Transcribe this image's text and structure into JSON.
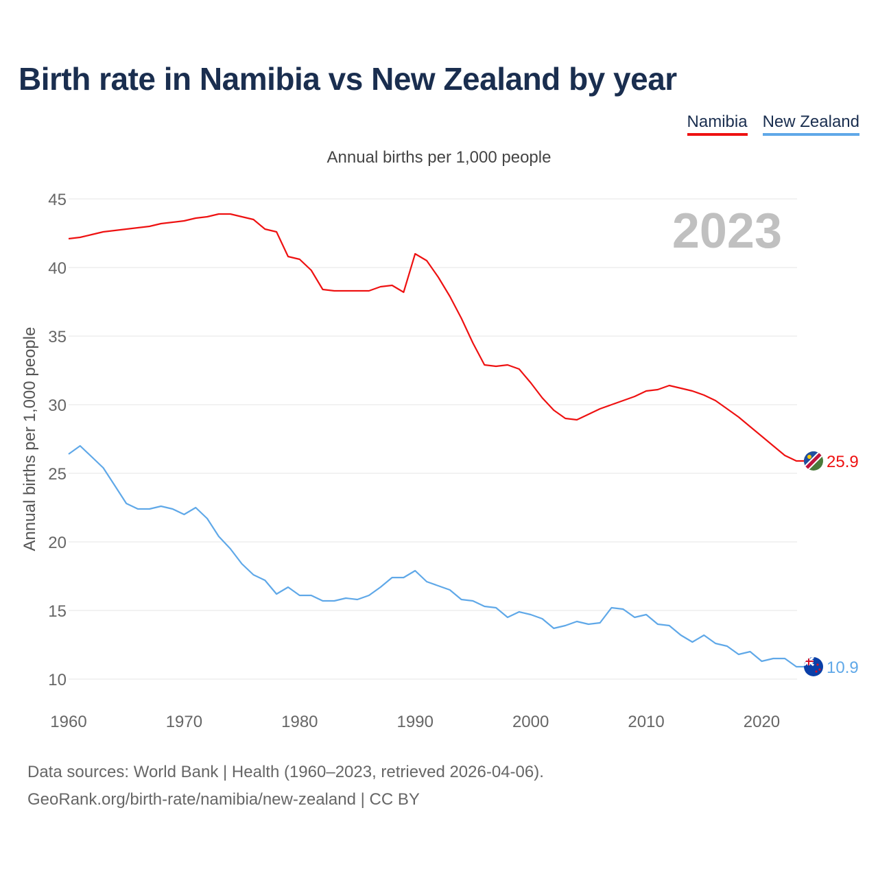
{
  "title": "Birth rate in Namibia vs New Zealand by year",
  "subtitle": "Annual births per 1,000 people",
  "legend": [
    {
      "label": "Namibia",
      "color": "#ee1111"
    },
    {
      "label": "New Zealand",
      "color": "#5fa8e8"
    }
  ],
  "year_label": "2023",
  "source": {
    "line1": "Data sources: World Bank | Health (1960–2023, retrieved 2026-04-06).",
    "line2": "GeoRank.org/birth-rate/namibia/new-zealand | CC BY"
  },
  "chart_data": {
    "type": "line",
    "title": "Birth rate in Namibia vs New Zealand by year",
    "ylabel": "Annual births per 1,000 people",
    "xlabel": "",
    "xlim": [
      1960,
      2023
    ],
    "ylim": [
      10,
      45
    ],
    "x_ticks": [
      1960,
      1970,
      1980,
      1990,
      2000,
      2010,
      2020
    ],
    "y_ticks": [
      10,
      15,
      20,
      25,
      30,
      35,
      40,
      45
    ],
    "x": [
      1960,
      1961,
      1962,
      1963,
      1964,
      1965,
      1966,
      1967,
      1968,
      1969,
      1970,
      1971,
      1972,
      1973,
      1974,
      1975,
      1976,
      1977,
      1978,
      1979,
      1980,
      1981,
      1982,
      1983,
      1984,
      1985,
      1986,
      1987,
      1988,
      1989,
      1990,
      1991,
      1992,
      1993,
      1994,
      1995,
      1996,
      1997,
      1998,
      1999,
      2000,
      2001,
      2002,
      2003,
      2004,
      2005,
      2006,
      2007,
      2008,
      2009,
      2010,
      2011,
      2012,
      2013,
      2014,
      2015,
      2016,
      2017,
      2018,
      2019,
      2020,
      2021,
      2022,
      2023
    ],
    "series": [
      {
        "name": "Namibia",
        "color": "#ee1111",
        "end_label": "25.9",
        "flag": "namibia-flag-icon",
        "values": [
          42.1,
          42.2,
          42.4,
          42.6,
          42.7,
          42.8,
          42.9,
          43.0,
          43.2,
          43.3,
          43.4,
          43.6,
          43.7,
          43.9,
          43.9,
          43.7,
          43.5,
          42.8,
          42.6,
          40.8,
          40.6,
          39.8,
          38.4,
          38.3,
          38.3,
          38.3,
          38.3,
          38.6,
          38.7,
          38.2,
          41.0,
          40.5,
          39.3,
          37.9,
          36.3,
          34.5,
          32.9,
          32.8,
          32.9,
          32.6,
          31.6,
          30.5,
          29.6,
          29.0,
          28.9,
          29.3,
          29.7,
          30.0,
          30.3,
          30.6,
          31.0,
          31.1,
          31.4,
          31.2,
          31.0,
          30.7,
          30.3,
          29.7,
          29.1,
          28.4,
          27.7,
          27.0,
          26.3,
          25.9
        ]
      },
      {
        "name": "New Zealand",
        "color": "#5fa8e8",
        "end_label": "10.9",
        "flag": "new-zealand-flag-icon",
        "values": [
          26.4,
          27.0,
          26.2,
          25.4,
          24.1,
          22.8,
          22.4,
          22.4,
          22.6,
          22.4,
          22.0,
          22.5,
          21.7,
          20.4,
          19.5,
          18.4,
          17.6,
          17.2,
          16.2,
          16.7,
          16.1,
          16.1,
          15.7,
          15.7,
          15.9,
          15.8,
          16.1,
          16.7,
          17.4,
          17.4,
          17.9,
          17.1,
          16.8,
          16.5,
          15.8,
          15.7,
          15.3,
          15.2,
          14.5,
          14.9,
          14.7,
          14.4,
          13.7,
          13.9,
          14.2,
          14.0,
          14.1,
          15.2,
          15.1,
          14.5,
          14.7,
          14.0,
          13.9,
          13.2,
          12.7,
          13.2,
          12.6,
          12.4,
          11.8,
          12.0,
          11.3,
          11.5,
          11.5,
          10.9
        ]
      }
    ]
  }
}
